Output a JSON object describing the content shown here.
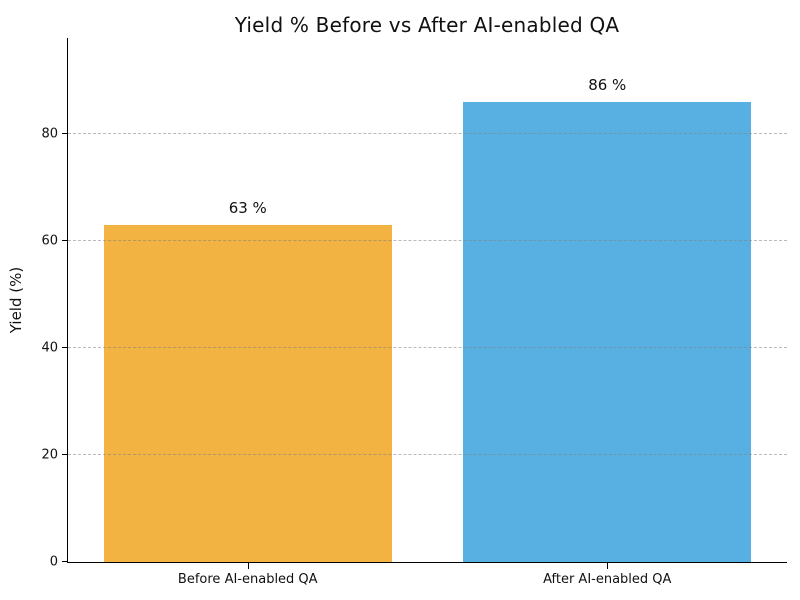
{
  "chart_data": {
    "type": "bar",
    "title": "Yield % Before vs After AI-enabled QA",
    "xlabel": "",
    "ylabel": "Yield (%)",
    "categories": [
      "Before AI-enabled QA",
      "After AI-enabled QA"
    ],
    "values": [
      63,
      86
    ],
    "value_labels": [
      "63 %",
      "86 %"
    ],
    "bar_colors": [
      "#F2B342",
      "#57B0E1"
    ],
    "ylim": [
      0,
      98
    ],
    "yticks": [
      0,
      20,
      40,
      60,
      80
    ],
    "ytick_labels": [
      "0",
      "20",
      "40",
      "60",
      "80"
    ],
    "grid": true,
    "grid_axis": "y",
    "grid_style": "dashed",
    "grid_color": "#9a9a9a",
    "legend": "none",
    "bar_width_fraction": 0.8
  }
}
